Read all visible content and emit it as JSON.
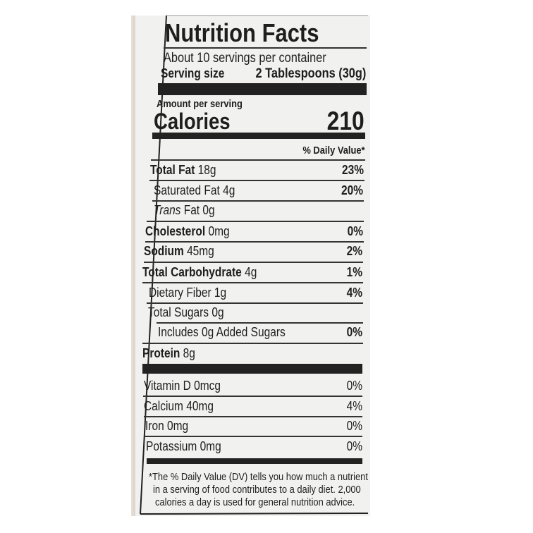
{
  "label": {
    "title": "Nutrition Facts",
    "servings_per_container": "About 10 servings per container",
    "serving_size_label": "Serving size",
    "serving_size_value": "2 Tablespoons (30g)",
    "amount_per_serving": "Amount per serving",
    "calories_label": "Calories",
    "calories_value": "210",
    "daily_value_header": "% Daily Value*",
    "nutrients": [
      {
        "name": "Total Fat",
        "amount": "18g",
        "dv": "23%"
      },
      {
        "name": "Saturated Fat",
        "amount": "4g",
        "dv": "20%"
      },
      {
        "name": "Trans",
        "name_rest": "Fat",
        "amount": "0g",
        "dv": ""
      },
      {
        "name": "Cholesterol",
        "amount": "0mg",
        "dv": "0%"
      },
      {
        "name": "Sodium",
        "amount": "45mg",
        "dv": "2%"
      },
      {
        "name": "Total Carbohydrate",
        "amount": "4g",
        "dv": "1%"
      },
      {
        "name": "Dietary Fiber",
        "amount": "1g",
        "dv": "4%"
      },
      {
        "name": "Total Sugars",
        "amount": "0g",
        "dv": ""
      },
      {
        "name": "Includes 0g Added Sugars",
        "amount": "",
        "dv": "0%"
      },
      {
        "name": "Protein",
        "amount": "8g",
        "dv": ""
      }
    ],
    "vitamins": [
      {
        "name": "Vitamin D 0mcg",
        "dv": "0%"
      },
      {
        "name": "Calcium 40mg",
        "dv": "4%"
      },
      {
        "name": "Iron 0mg",
        "dv": "0%"
      },
      {
        "name": "Potassium 0mg",
        "dv": "0%"
      }
    ],
    "footnote": [
      "*The % Daily Value (DV) tells you how much a nutrient",
      "in a serving of food contributes to a daily diet. 2,000",
      "calories a day is used for general nutrition advice."
    ]
  }
}
